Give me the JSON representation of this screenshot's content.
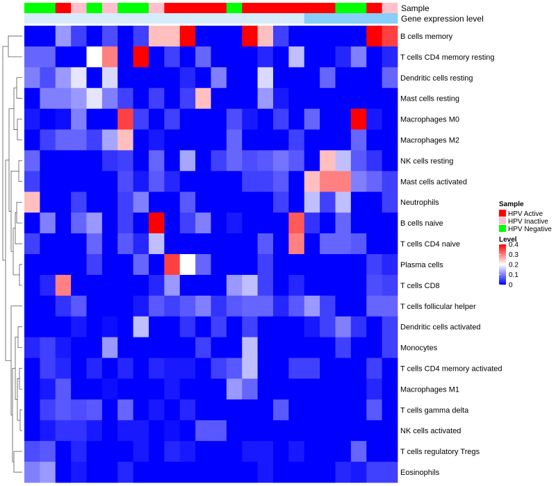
{
  "chart_data": {
    "type": "heatmap",
    "title": "",
    "annotation_tracks": [
      {
        "name": "Sample",
        "values": [
          "HPV Negative",
          "HPV Negative",
          "HPV Active",
          "HPV Inactive",
          "HPV Negative",
          "HPV Inactive",
          "HPV Negative",
          "HPV Negative",
          "HPV Inactive",
          "HPV Active",
          "HPV Active",
          "HPV Active",
          "HPV Active",
          "HPV Negative",
          "HPV Active",
          "HPV Active",
          "HPV Active",
          "HPV Active",
          "HPV Active",
          "HPV Active",
          "HPV Negative",
          "HPV Negative",
          "HPV Active",
          "HPV Inactive"
        ]
      },
      {
        "name": "Gene expression level",
        "values": [
          "low",
          "low",
          "low",
          "low",
          "low",
          "low",
          "low",
          "low",
          "low",
          "low",
          "low",
          "low",
          "low",
          "low",
          "low",
          "low",
          "low",
          "low",
          "high",
          "high",
          "high",
          "high",
          "high",
          "high"
        ]
      }
    ],
    "rows": [
      "B cells memory",
      "T cells CD4 memory resting",
      "Dendritic cells resting",
      "Mast cells resting",
      "Macrophages M0",
      "Macrophages M2",
      "NK cells resting",
      "Mast cells activated",
      "Neutrophils",
      "B cells naive",
      "T cells CD4 naive",
      "Plasma cells",
      "T cells CD8",
      "T cells follicular helper",
      "Dendritic cells activated",
      "Monocytes",
      "T cells CD4 memory activated",
      "Macrophages M1",
      "T cells gamma delta",
      "NK cells activated",
      "T cells regulatory  Tregs",
      "Eosinophils"
    ],
    "values": [
      [
        0,
        0,
        0.12,
        0.05,
        0,
        0.06,
        0,
        0.05,
        0.25,
        0.25,
        0.4,
        0,
        0,
        0,
        0.4,
        0.25,
        0.05,
        0,
        0,
        0,
        0,
        0,
        0.4,
        0.35
      ],
      [
        0.08,
        0.08,
        0,
        0,
        0.2,
        0.3,
        0,
        0.4,
        0,
        0.05,
        0,
        0.08,
        0,
        0,
        0,
        0.03,
        0,
        0.15,
        0,
        0,
        0.03,
        0.1,
        0,
        0.03
      ],
      [
        0.1,
        0.06,
        0.12,
        0.18,
        0,
        0.17,
        0,
        0,
        0,
        0,
        0.03,
        0,
        0.1,
        0,
        0,
        0.17,
        0,
        0,
        0,
        0.08,
        0,
        0,
        0,
        0.08
      ],
      [
        0,
        0.1,
        0.1,
        0.12,
        0.18,
        0.1,
        0.05,
        0,
        0.05,
        0,
        0.05,
        0.25,
        0,
        0,
        0,
        0.12,
        0.02,
        0,
        0,
        0,
        0,
        0,
        0,
        0
      ],
      [
        0.02,
        0,
        0.01,
        0.1,
        0,
        0,
        0.35,
        0.05,
        0,
        0.05,
        0,
        0,
        0,
        0.06,
        0.02,
        0,
        0.05,
        0,
        0.08,
        0,
        0,
        0.4,
        0.02,
        0
      ],
      [
        0,
        0.05,
        0.08,
        0.08,
        0.05,
        0.13,
        0.25,
        0,
        0.02,
        0,
        0,
        0,
        0,
        0.08,
        0,
        0,
        0,
        0.05,
        0,
        0,
        0,
        0.08,
        0,
        0
      ],
      [
        0.08,
        0,
        0,
        0,
        0,
        0.04,
        0.05,
        0,
        0.08,
        0,
        0.13,
        0,
        0.05,
        0.08,
        0.06,
        0.07,
        0.09,
        0.07,
        0,
        0.25,
        0.15,
        0.07,
        0.04,
        0
      ],
      [
        0.05,
        0,
        0,
        0,
        0,
        0,
        0.06,
        0.02,
        0.07,
        0.03,
        0,
        0,
        0,
        0,
        0.05,
        0.05,
        0.07,
        0,
        0.25,
        0.3,
        0.3,
        0.1,
        0.08,
        0.05
      ],
      [
        0.25,
        0,
        0,
        0.05,
        0,
        0,
        0.05,
        0.1,
        0,
        0,
        0.07,
        0,
        0,
        0,
        0,
        0,
        0.05,
        0,
        0.15,
        0.05,
        0.15,
        0,
        0,
        0.05
      ],
      [
        0,
        0.1,
        0,
        0.08,
        0.12,
        0,
        0.05,
        0,
        0.4,
        0,
        0.05,
        0.1,
        0,
        0.02,
        0,
        0,
        0,
        0.33,
        0.04,
        0,
        0.08,
        0,
        0,
        0
      ],
      [
        0.05,
        0,
        0,
        0,
        0.08,
        0,
        0.07,
        0.03,
        0.15,
        0,
        0,
        0,
        0,
        0,
        0,
        0.07,
        0,
        0.3,
        0,
        0.08,
        0.08,
        0.07,
        0,
        0
      ],
      [
        0,
        0,
        0,
        0,
        0.05,
        0,
        0,
        0.08,
        0,
        0.35,
        0.2,
        0.08,
        0,
        0,
        0,
        0.05,
        0,
        0,
        0,
        0,
        0,
        0,
        0.05,
        0.03
      ],
      [
        0,
        0.03,
        0.3,
        0,
        0,
        0,
        0,
        0,
        0.03,
        0.12,
        0,
        0,
        0,
        0.12,
        0.15,
        0.05,
        0,
        0.03,
        0,
        0,
        0,
        0,
        0.06,
        0.05
      ],
      [
        0,
        0,
        0.04,
        0.07,
        0,
        0,
        0,
        0.02,
        0.07,
        0.05,
        0.07,
        0.1,
        0.04,
        0.07,
        0.08,
        0.08,
        0.03,
        0.07,
        0.12,
        0.05,
        0,
        0,
        0.08,
        0.08
      ],
      [
        0,
        0,
        0,
        0.02,
        0,
        0.01,
        0,
        0.15,
        0,
        0,
        0.04,
        0,
        0.05,
        0,
        0.05,
        0,
        0,
        0,
        0.02,
        0.05,
        0.1,
        0.04,
        0,
        0.05
      ],
      [
        0.03,
        0.05,
        0.02,
        0,
        0,
        0.12,
        0,
        0,
        0,
        0,
        0,
        0.05,
        0,
        0,
        0.15,
        0,
        0,
        0,
        0,
        0,
        0.05,
        0,
        0,
        0.05
      ],
      [
        0,
        0.05,
        0.03,
        0,
        0.03,
        0,
        0.03,
        0,
        0.03,
        0.02,
        0.02,
        0,
        0.05,
        0.07,
        0.15,
        0,
        0,
        0.05,
        0.05,
        0,
        0,
        0,
        0.05,
        0
      ],
      [
        0,
        0.02,
        0.07,
        0,
        0,
        0.01,
        0,
        0,
        0,
        0.02,
        0,
        0,
        0,
        0.12,
        0.08,
        0,
        0,
        0,
        0,
        0,
        0,
        0,
        0.03,
        0
      ],
      [
        0,
        0.05,
        0.07,
        0.06,
        0.07,
        0,
        0.08,
        0,
        0.02,
        0,
        0.03,
        0,
        0,
        0,
        0,
        0,
        0.07,
        0,
        0,
        0,
        0,
        0,
        0.07,
        0
      ],
      [
        0,
        0.02,
        0.04,
        0.04,
        0.02,
        0,
        0.02,
        0.02,
        0,
        0.01,
        0,
        0.07,
        0.07,
        0,
        0,
        0,
        0,
        0,
        0,
        0,
        0,
        0,
        0,
        0
      ],
      [
        0.06,
        0.07,
        0,
        0.03,
        0,
        0,
        0,
        0.02,
        0,
        0.03,
        0.02,
        0,
        0,
        0,
        0.02,
        0.02,
        0,
        0.02,
        0,
        0,
        0,
        0.08,
        0,
        0
      ],
      [
        0.1,
        0.12,
        0,
        0.02,
        0,
        0,
        0.03,
        0,
        0,
        0,
        0,
        0,
        0,
        0,
        0,
        0.02,
        0,
        0,
        0,
        0,
        0.03,
        0.02,
        0.05,
        0.05
      ]
    ],
    "color_scale": {
      "min": 0,
      "max": 0.4,
      "low": "#0000FF",
      "mid": "#FFFFFF",
      "high": "#FF0000",
      "mid_value": 0.2
    },
    "legend": {
      "sample_title": "Sample",
      "sample_items": [
        {
          "label": "HPV Active",
          "color": "#FF0000"
        },
        {
          "label": "HPV Inactive",
          "color": "#FFC0CB"
        },
        {
          "label": "HPV Negative",
          "color": "#00FF00"
        }
      ],
      "level_title": "Level",
      "level_ticks": [
        "0.4",
        "0.3",
        "0.2",
        "0.1",
        "0"
      ],
      "gene_colors": {
        "low": "#D6ECFA",
        "high": "#87CEFA"
      }
    },
    "row_dendrogram": true,
    "column_order": "fixed"
  }
}
